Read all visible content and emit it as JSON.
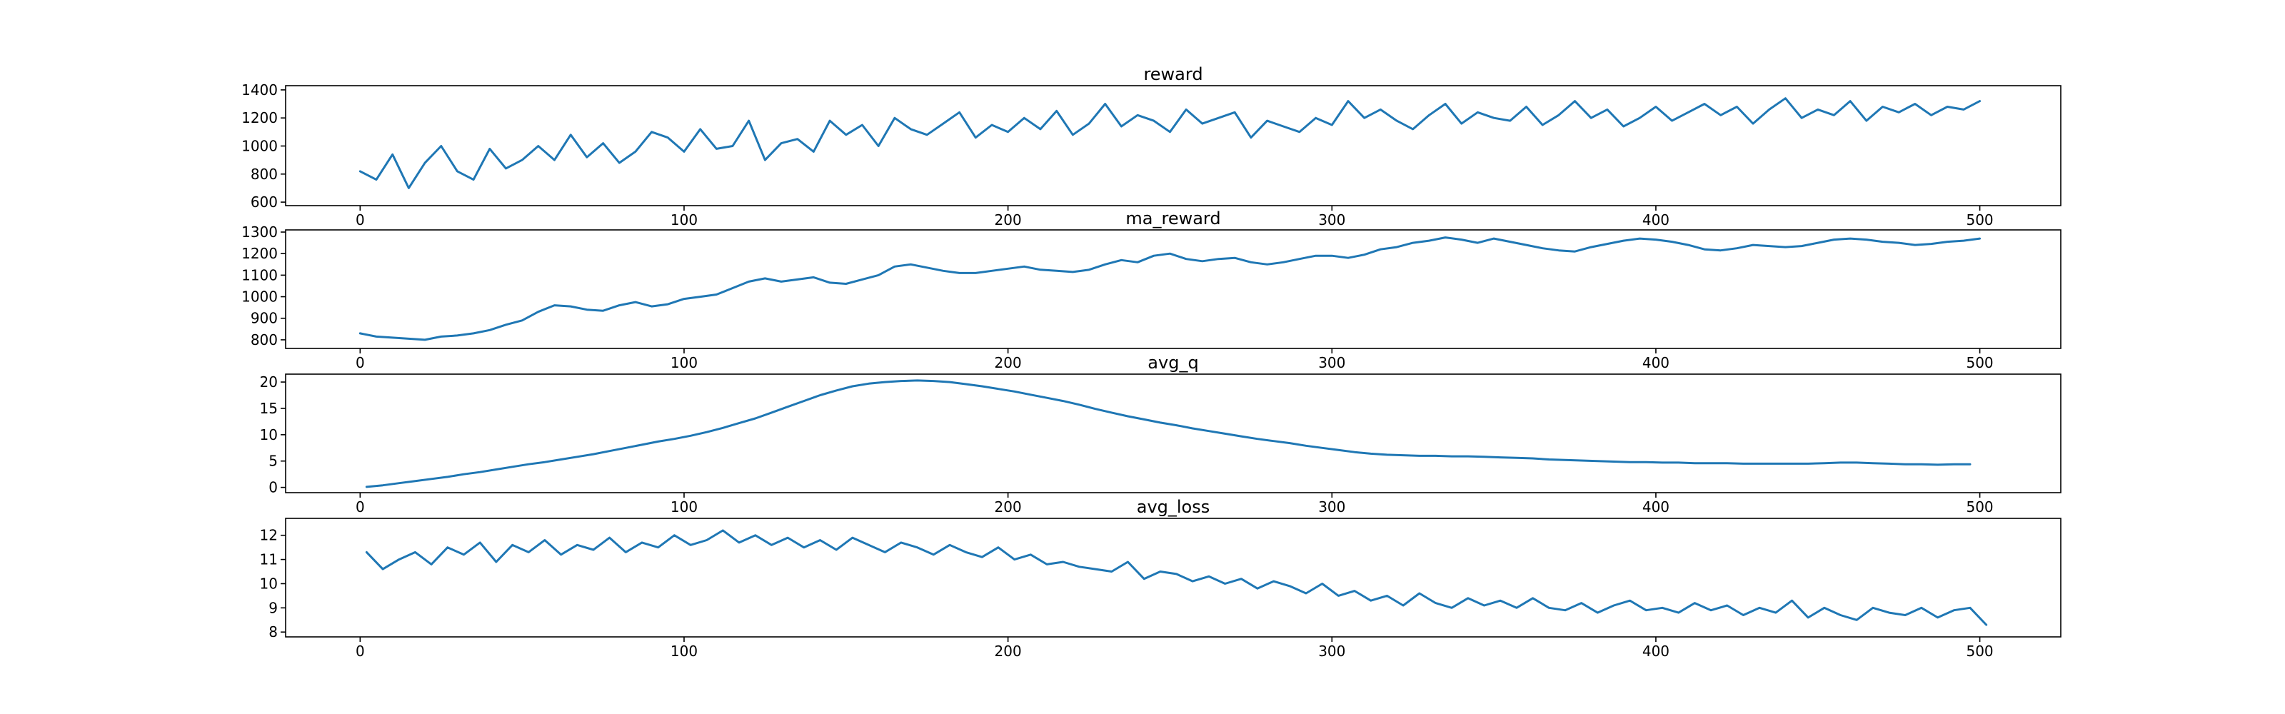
{
  "figure": {
    "background": "#ffffff",
    "line_color": "#1f77b4"
  },
  "chart_data": [
    {
      "type": "line",
      "title": "reward",
      "xlabel": "",
      "ylabel": "",
      "xlim": [
        -23,
        525
      ],
      "ylim": [
        575,
        1430
      ],
      "xticks": [
        0,
        100,
        200,
        300,
        400,
        500
      ],
      "yticks": [
        600,
        800,
        1000,
        1200,
        1400
      ],
      "grid": false,
      "legend": "none",
      "series": [
        {
          "x_start": 0,
          "x_step": 5,
          "values": [
            820,
            760,
            940,
            700,
            880,
            1000,
            820,
            760,
            980,
            840,
            900,
            1000,
            900,
            1080,
            920,
            1020,
            880,
            960,
            1100,
            1060,
            960,
            1120,
            980,
            1000,
            1180,
            900,
            1020,
            1050,
            960,
            1180,
            1080,
            1150,
            1000,
            1200,
            1120,
            1080,
            1160,
            1240,
            1060,
            1150,
            1100,
            1200,
            1120,
            1250,
            1080,
            1160,
            1300,
            1140,
            1220,
            1180,
            1100,
            1260,
            1160,
            1200,
            1240,
            1060,
            1180,
            1140,
            1100,
            1200,
            1150,
            1320,
            1200,
            1260,
            1180,
            1120,
            1220,
            1300,
            1160,
            1240,
            1200,
            1180,
            1280,
            1150,
            1220,
            1320,
            1200,
            1260,
            1140,
            1200,
            1280,
            1180,
            1240,
            1300,
            1220,
            1280,
            1160,
            1260,
            1340,
            1200,
            1260,
            1220,
            1320,
            1180,
            1280,
            1240,
            1300,
            1220,
            1280,
            1260,
            1320
          ]
        }
      ]
    },
    {
      "type": "line",
      "title": "ma_reward",
      "xlabel": "",
      "ylabel": "",
      "xlim": [
        -23,
        525
      ],
      "ylim": [
        760,
        1310
      ],
      "xticks": [
        0,
        100,
        200,
        300,
        400,
        500
      ],
      "yticks": [
        800,
        900,
        1000,
        1100,
        1200,
        1300
      ],
      "grid": false,
      "legend": "none",
      "series": [
        {
          "x_start": 0,
          "x_step": 5,
          "values": [
            830,
            815,
            810,
            805,
            800,
            815,
            820,
            830,
            845,
            870,
            890,
            930,
            960,
            955,
            940,
            935,
            960,
            975,
            955,
            965,
            990,
            1000,
            1010,
            1040,
            1070,
            1085,
            1070,
            1080,
            1090,
            1065,
            1060,
            1080,
            1100,
            1140,
            1150,
            1135,
            1120,
            1110,
            1110,
            1120,
            1130,
            1140,
            1125,
            1120,
            1115,
            1125,
            1150,
            1170,
            1160,
            1190,
            1200,
            1175,
            1165,
            1175,
            1180,
            1160,
            1150,
            1160,
            1175,
            1190,
            1190,
            1180,
            1195,
            1220,
            1230,
            1250,
            1260,
            1275,
            1265,
            1250,
            1270,
            1255,
            1240,
            1225,
            1215,
            1210,
            1230,
            1245,
            1260,
            1270,
            1265,
            1255,
            1240,
            1220,
            1215,
            1225,
            1240,
            1235,
            1230,
            1235,
            1250,
            1265,
            1270,
            1265,
            1255,
            1250,
            1240,
            1245,
            1255,
            1260,
            1270
          ]
        }
      ]
    },
    {
      "type": "line",
      "title": "avg_q",
      "xlabel": "",
      "ylabel": "",
      "xlim": [
        -23,
        525
      ],
      "ylim": [
        -1,
        21.5
      ],
      "xticks": [
        0,
        100,
        200,
        300,
        400,
        500
      ],
      "yticks": [
        0,
        5,
        10,
        15,
        20
      ],
      "grid": false,
      "legend": "none",
      "series": [
        {
          "x_start": 2,
          "x_step": 5,
          "values": [
            0.1,
            0.4,
            0.8,
            1.2,
            1.6,
            2.0,
            2.5,
            2.9,
            3.4,
            3.9,
            4.4,
            4.8,
            5.3,
            5.8,
            6.3,
            6.9,
            7.5,
            8.1,
            8.7,
            9.2,
            9.8,
            10.5,
            11.3,
            12.2,
            13.1,
            14.2,
            15.3,
            16.4,
            17.5,
            18.4,
            19.2,
            19.7,
            20.0,
            20.2,
            20.3,
            20.2,
            20.0,
            19.6,
            19.2,
            18.7,
            18.2,
            17.6,
            17.0,
            16.4,
            15.7,
            14.9,
            14.2,
            13.5,
            12.9,
            12.3,
            11.8,
            11.2,
            10.7,
            10.2,
            9.7,
            9.2,
            8.8,
            8.4,
            7.9,
            7.5,
            7.1,
            6.7,
            6.4,
            6.2,
            6.1,
            6.0,
            6.0,
            5.9,
            5.9,
            5.8,
            5.7,
            5.6,
            5.5,
            5.3,
            5.2,
            5.1,
            5.0,
            4.9,
            4.8,
            4.8,
            4.7,
            4.7,
            4.6,
            4.6,
            4.6,
            4.5,
            4.5,
            4.5,
            4.5,
            4.5,
            4.6,
            4.7,
            4.7,
            4.6,
            4.5,
            4.4,
            4.4,
            4.3,
            4.4,
            4.4
          ]
        }
      ]
    },
    {
      "type": "line",
      "title": "avg_loss",
      "xlabel": "",
      "ylabel": "",
      "xlim": [
        -23,
        525
      ],
      "ylim": [
        7.8,
        12.7
      ],
      "xticks": [
        0,
        100,
        200,
        300,
        400,
        500
      ],
      "yticks": [
        8,
        9,
        10,
        11,
        12
      ],
      "grid": false,
      "legend": "none",
      "series": [
        {
          "x_start": 2,
          "x_step": 5,
          "values": [
            11.3,
            10.6,
            11.0,
            11.3,
            10.8,
            11.5,
            11.2,
            11.7,
            10.9,
            11.6,
            11.3,
            11.8,
            11.2,
            11.6,
            11.4,
            11.9,
            11.3,
            11.7,
            11.5,
            12.0,
            11.6,
            11.8,
            12.2,
            11.7,
            12.0,
            11.6,
            11.9,
            11.5,
            11.8,
            11.4,
            11.9,
            11.6,
            11.3,
            11.7,
            11.5,
            11.2,
            11.6,
            11.3,
            11.1,
            11.5,
            11.0,
            11.2,
            10.8,
            10.9,
            10.7,
            10.6,
            10.5,
            10.9,
            10.2,
            10.5,
            10.4,
            10.1,
            10.3,
            10.0,
            10.2,
            9.8,
            10.1,
            9.9,
            9.6,
            10.0,
            9.5,
            9.7,
            9.3,
            9.5,
            9.1,
            9.6,
            9.2,
            9.0,
            9.4,
            9.1,
            9.3,
            9.0,
            9.4,
            9.0,
            8.9,
            9.2,
            8.8,
            9.1,
            9.3,
            8.9,
            9.0,
            8.8,
            9.2,
            8.9,
            9.1,
            8.7,
            9.0,
            8.8,
            9.3,
            8.6,
            9.0,
            8.7,
            8.5,
            9.0,
            8.8,
            8.7,
            9.0,
            8.6,
            8.9,
            9.0,
            8.3
          ]
        }
      ]
    }
  ]
}
